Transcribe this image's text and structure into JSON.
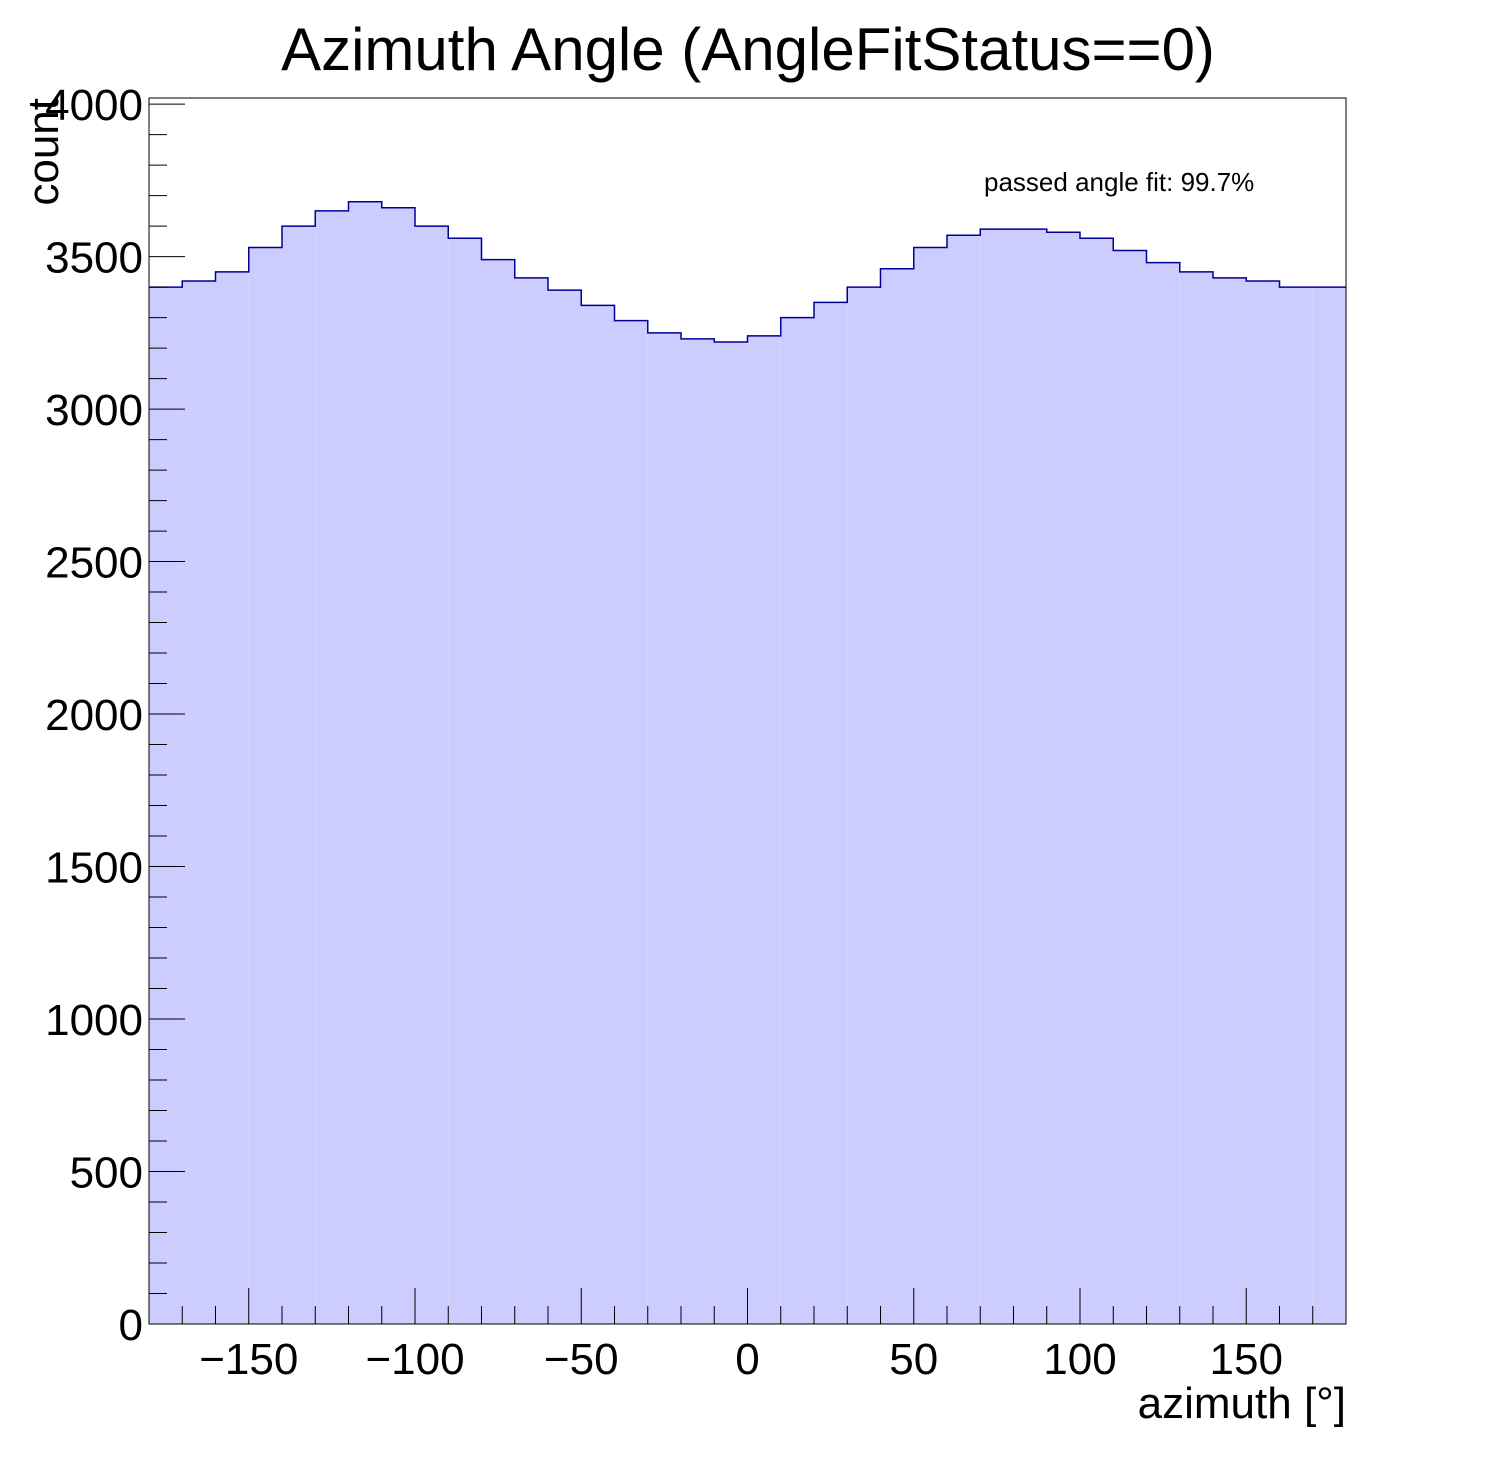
{
  "chart_data": {
    "type": "bar",
    "histogram": true,
    "title": "Azimuth Angle (AngleFitStatus==0)",
    "xlabel": "azimuth [°]",
    "ylabel": "count",
    "xlim": [
      -180,
      180
    ],
    "ylim": [
      0,
      4020
    ],
    "x_ticks": [
      -150,
      -100,
      -50,
      0,
      50,
      100,
      150
    ],
    "x_tick_labels": [
      "−150",
      "−100",
      "−50",
      "0",
      "50",
      "100",
      "150"
    ],
    "y_ticks": [
      0,
      500,
      1000,
      1500,
      2000,
      2500,
      3000,
      3500,
      4000
    ],
    "y_tick_labels": [
      "0",
      "500",
      "1000",
      "1500",
      "2000",
      "2500",
      "3000",
      "3500",
      "4000"
    ],
    "annotation": "passed angle fit: 99.7%",
    "bin_width": 10,
    "bin_centers": [
      -175,
      -165,
      -155,
      -145,
      -135,
      -125,
      -115,
      -105,
      -95,
      -85,
      -75,
      -65,
      -55,
      -45,
      -35,
      -25,
      -15,
      -5,
      5,
      15,
      25,
      35,
      45,
      55,
      65,
      75,
      85,
      95,
      105,
      115,
      125,
      135,
      145,
      155,
      165,
      175
    ],
    "values": [
      3400,
      3420,
      3450,
      3530,
      3600,
      3650,
      3680,
      3660,
      3600,
      3560,
      3490,
      3430,
      3390,
      3340,
      3290,
      3250,
      3230,
      3220,
      3240,
      3300,
      3350,
      3400,
      3460,
      3530,
      3570,
      3590,
      3590,
      3580,
      3560,
      3520,
      3480,
      3450,
      3430,
      3420,
      3400,
      3400
    ],
    "fill_color": "#ccccfe",
    "line_color": "#000099",
    "grid": false,
    "legend": "none"
  }
}
